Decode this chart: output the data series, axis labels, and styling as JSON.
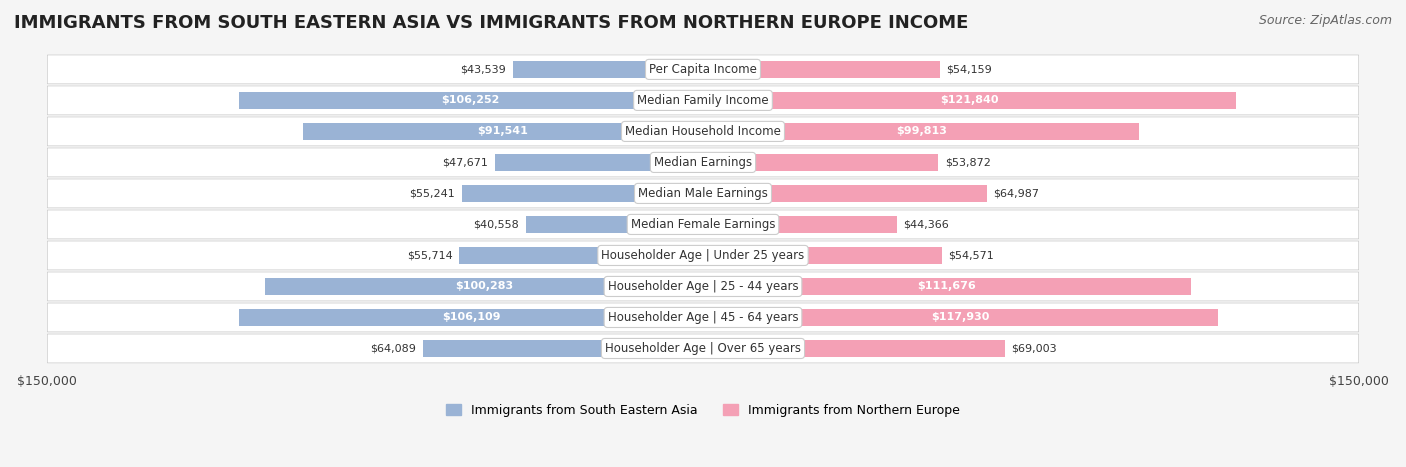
{
  "title": "IMMIGRANTS FROM SOUTH EASTERN ASIA VS IMMIGRANTS FROM NORTHERN EUROPE INCOME",
  "source": "Source: ZipAtlas.com",
  "categories": [
    "Per Capita Income",
    "Median Family Income",
    "Median Household Income",
    "Median Earnings",
    "Median Male Earnings",
    "Median Female Earnings",
    "Householder Age | Under 25 years",
    "Householder Age | 25 - 44 years",
    "Householder Age | 45 - 64 years",
    "Householder Age | Over 65 years"
  ],
  "sea_values": [
    43539,
    106252,
    91541,
    47671,
    55241,
    40558,
    55714,
    100283,
    106109,
    64089
  ],
  "ne_values": [
    54159,
    121840,
    99813,
    53872,
    64987,
    44366,
    54571,
    111676,
    117930,
    69003
  ],
  "sea_color": "#9ab3d5",
  "ne_color": "#f4a0b5",
  "sea_color_dark": "#7094bf",
  "ne_color_dark": "#e8799a",
  "label_sea": "Immigrants from South Eastern Asia",
  "label_ne": "Immigrants from Northern Europe",
  "max_value": 150000,
  "background_color": "#f5f5f5",
  "row_bg_color": "#ffffff",
  "title_fontsize": 13,
  "source_fontsize": 9,
  "bar_height": 0.55,
  "label_fontsize": 8.5,
  "value_fontsize": 8,
  "axis_label_bottom": "$150,000"
}
